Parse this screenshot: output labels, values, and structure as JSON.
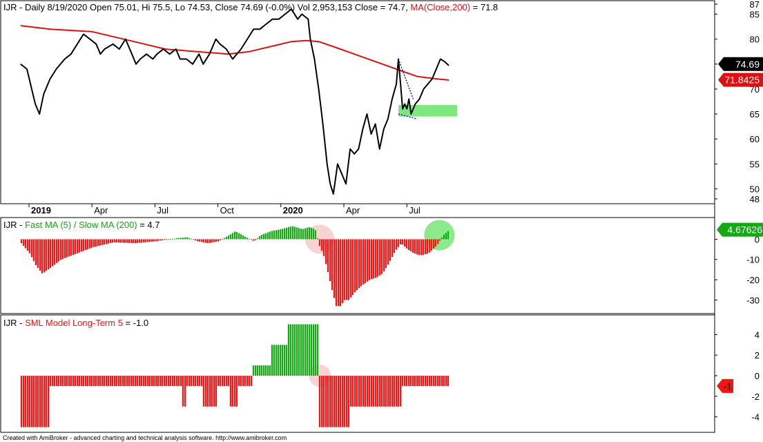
{
  "colors": {
    "price": "#000000",
    "ma": "#dd1111",
    "pos": "#11aa11",
    "neg": "#ff1111",
    "zone": "#7ee87e",
    "wedge": "#1515cc",
    "circle_red": "#f7c8c8",
    "circle_green": "#7ee87e"
  },
  "footer": "Created with AmiBroker - advanced charting and technical analysis software. http://www.amibroker.com",
  "chart_data": [
    {
      "type": "line",
      "ticker": "IJR",
      "header": {
        "ticker": "IJR",
        "info": " - Daily 8/19/2020 Open 75.01, Hi 75.5, Lo 74.53, Close 74.69 (-0.0%) Vol 2,953,153 Close = 74.7, ",
        "ma_label": "MA(Close,200)",
        "ma_value": " = 71.8"
      },
      "ylim": [
        48,
        87
      ],
      "y_ticks": [
        87,
        85,
        80,
        75,
        70,
        65,
        60,
        55,
        50,
        48
      ],
      "x_labels": [
        "2019",
        "Apr",
        "Jul",
        "Oct",
        "2020",
        "Apr",
        "Jul"
      ],
      "x_label_months": [
        0,
        3,
        6,
        9,
        12,
        15,
        18
      ],
      "last_close": "74.69",
      "last_ma": "71.8425",
      "series": [
        {
          "name": "Close",
          "points": [
            [
              -0.4,
              75
            ],
            [
              -0.1,
              74
            ],
            [
              0.3,
              67
            ],
            [
              0.5,
              65
            ],
            [
              0.7,
              69
            ],
            [
              1.0,
              72
            ],
            [
              1.3,
              74
            ],
            [
              1.7,
              76
            ],
            [
              2.0,
              77
            ],
            [
              2.3,
              79
            ],
            [
              2.6,
              81
            ],
            [
              2.9,
              80
            ],
            [
              3.2,
              79
            ],
            [
              3.4,
              77
            ],
            [
              3.6,
              78
            ],
            [
              4.0,
              79
            ],
            [
              4.3,
              78
            ],
            [
              4.6,
              80
            ],
            [
              4.9,
              77
            ],
            [
              5.1,
              75
            ],
            [
              5.3,
              76
            ],
            [
              5.6,
              77
            ],
            [
              5.9,
              76
            ],
            [
              6.1,
              77
            ],
            [
              6.4,
              78
            ],
            [
              6.7,
              77
            ],
            [
              7.0,
              78
            ],
            [
              7.2,
              76
            ],
            [
              7.5,
              76
            ],
            [
              7.8,
              75
            ],
            [
              8.1,
              77
            ],
            [
              8.3,
              75
            ],
            [
              8.6,
              77
            ],
            [
              8.9,
              80
            ],
            [
              9.1,
              79
            ],
            [
              9.4,
              78
            ],
            [
              9.7,
              76
            ],
            [
              9.9,
              77
            ],
            [
              10.1,
              78
            ],
            [
              10.4,
              80
            ],
            [
              10.7,
              82
            ],
            [
              11.0,
              82
            ],
            [
              11.3,
              83
            ],
            [
              11.6,
              84
            ],
            [
              11.9,
              84
            ],
            [
              12.2,
              85
            ],
            [
              12.5,
              86
            ],
            [
              12.8,
              84
            ],
            [
              13.0,
              85
            ],
            [
              13.3,
              84
            ],
            [
              13.4,
              80
            ],
            [
              13.6,
              76
            ],
            [
              13.8,
              70
            ],
            [
              14.0,
              63
            ],
            [
              14.2,
              55
            ],
            [
              14.35,
              51
            ],
            [
              14.5,
              49
            ],
            [
              14.7,
              55
            ],
            [
              14.9,
              53
            ],
            [
              15.1,
              51
            ],
            [
              15.3,
              58
            ],
            [
              15.5,
              57
            ],
            [
              15.7,
              58
            ],
            [
              15.9,
              62
            ],
            [
              16.1,
              65
            ],
            [
              16.3,
              61
            ],
            [
              16.5,
              63
            ],
            [
              16.7,
              58
            ],
            [
              16.9,
              62
            ],
            [
              17.1,
              64
            ],
            [
              17.3,
              68
            ],
            [
              17.5,
              71
            ],
            [
              17.6,
              76
            ],
            [
              17.7,
              71
            ],
            [
              17.8,
              66
            ],
            [
              17.9,
              67
            ],
            [
              18.0,
              66
            ],
            [
              18.1,
              68
            ],
            [
              18.2,
              65
            ],
            [
              18.4,
              67
            ],
            [
              18.6,
              68
            ],
            [
              18.8,
              70
            ],
            [
              19.0,
              71
            ],
            [
              19.2,
              72
            ],
            [
              19.4,
              74
            ],
            [
              19.6,
              76
            ],
            [
              19.8,
              75.5
            ],
            [
              20.0,
              74.7
            ]
          ]
        },
        {
          "name": "MA(Close,200)",
          "points": [
            [
              -0.4,
              82.7
            ],
            [
              1,
              82
            ],
            [
              3,
              81.5
            ],
            [
              5,
              79.5
            ],
            [
              6.5,
              78
            ],
            [
              8,
              77.5
            ],
            [
              9.5,
              77
            ],
            [
              10.5,
              77.5
            ],
            [
              11.5,
              78.5
            ],
            [
              12.5,
              79.5
            ],
            [
              13.2,
              79.7
            ],
            [
              13.8,
              79.5
            ],
            [
              14.5,
              78.5
            ],
            [
              15.5,
              77
            ],
            [
              16.5,
              75.5
            ],
            [
              17.5,
              74
            ],
            [
              18.5,
              72.5
            ],
            [
              19.5,
              72
            ],
            [
              20.0,
              71.8
            ]
          ]
        }
      ],
      "green_zone": {
        "x": [
          17.6,
          20.0
        ],
        "y": [
          64.5,
          66.8
        ]
      },
      "wedge": [
        [
          [
            17.6,
            76
          ],
          [
            18.3,
            68
          ]
        ],
        [
          [
            17.6,
            65
          ],
          [
            18.5,
            64
          ]
        ]
      ]
    },
    {
      "type": "bar",
      "ticker": "IJR",
      "header": {
        "ticker": "IJR",
        "info": " - ",
        "label": "Fast MA (5) / Slow MA (200)",
        "value": " = 4.7"
      },
      "ylim": [
        -36,
        9
      ],
      "y_ticks": [
        0,
        -10,
        -20,
        -30
      ],
      "last_value": "4.67626",
      "points": [
        [
          -0.4,
          -2
        ],
        [
          0,
          -7
        ],
        [
          0.3,
          -13
        ],
        [
          0.6,
          -17
        ],
        [
          1.0,
          -14
        ],
        [
          1.5,
          -10
        ],
        [
          2,
          -8
        ],
        [
          3,
          -4
        ],
        [
          4,
          -1.5
        ],
        [
          5,
          -2
        ],
        [
          6,
          -1
        ],
        [
          7,
          0.5
        ],
        [
          7.5,
          1
        ],
        [
          8,
          -1
        ],
        [
          8.5,
          -2
        ],
        [
          9,
          -1
        ],
        [
          9.5,
          2
        ],
        [
          9.8,
          4
        ],
        [
          10.3,
          1
        ],
        [
          10.7,
          -1
        ],
        [
          11,
          2
        ],
        [
          11.5,
          4
        ],
        [
          12,
          5
        ],
        [
          12.5,
          6.5
        ],
        [
          13,
          5
        ],
        [
          13.3,
          6
        ],
        [
          13.6,
          5
        ],
        [
          13.8,
          -3
        ],
        [
          14.0,
          -8
        ],
        [
          14.2,
          -16
        ],
        [
          14.4,
          -25
        ],
        [
          14.6,
          -33
        ],
        [
          14.8,
          -33
        ],
        [
          15.0,
          -30
        ],
        [
          15.2,
          -30
        ],
        [
          15.5,
          -26
        ],
        [
          15.8,
          -23
        ],
        [
          16.2,
          -20
        ],
        [
          16.5,
          -19
        ],
        [
          16.8,
          -17
        ],
        [
          17.1,
          -12
        ],
        [
          17.4,
          -6
        ],
        [
          17.7,
          -2
        ],
        [
          18.0,
          -5
        ],
        [
          18.3,
          -7
        ],
        [
          18.6,
          -8
        ],
        [
          19.0,
          -7
        ],
        [
          19.4,
          -3
        ],
        [
          19.7,
          2
        ],
        [
          20.0,
          4.7
        ]
      ]
    },
    {
      "type": "bar",
      "ticker": "IJR",
      "header": {
        "ticker": "IJR",
        "info": " - ",
        "label": "SML Model Long-Term 5",
        "value": " = -1.0"
      },
      "ylim": [
        -5.5,
        5.5
      ],
      "y_ticks": [
        4,
        2,
        0,
        -2,
        -4
      ],
      "last_value": "-1",
      "segments": [
        [
          -0.4,
          0.9,
          -5
        ],
        [
          0.9,
          7.2,
          -1
        ],
        [
          7.2,
          7.4,
          -3
        ],
        [
          7.4,
          8.2,
          -1
        ],
        [
          8.2,
          8.9,
          -3
        ],
        [
          8.9,
          9.5,
          -1
        ],
        [
          9.5,
          9.9,
          -3
        ],
        [
          9.9,
          10.6,
          -1
        ],
        [
          10.6,
          11.5,
          1
        ],
        [
          11.5,
          12.3,
          3
        ],
        [
          12.3,
          13.8,
          5
        ],
        [
          13.8,
          15.2,
          -5
        ],
        [
          15.2,
          17.7,
          -3
        ],
        [
          17.7,
          20.0,
          -1
        ]
      ]
    }
  ]
}
